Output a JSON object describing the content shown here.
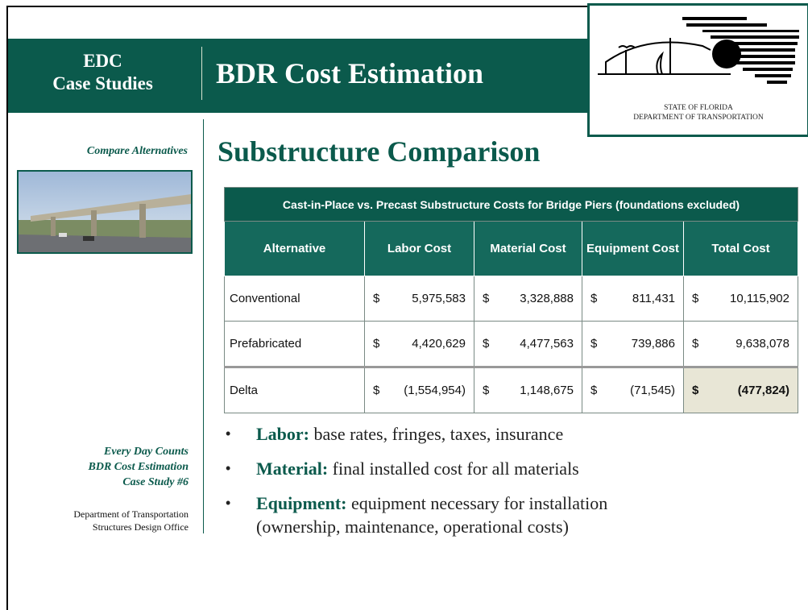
{
  "header": {
    "left_title": [
      "EDC",
      "Case Studies"
    ],
    "title": "BDR Cost Estimation",
    "logo": [
      "STATE OF FLORIDA",
      "DEPARTMENT OF TRANSPORTATION"
    ]
  },
  "sidebar": {
    "caption": "Compare Alternatives",
    "series": [
      "Every Day Counts",
      "BDR Cost Estimation",
      "Case Study #6"
    ],
    "office": [
      "Department of Transportation",
      "Structures Design Office"
    ]
  },
  "slide_title": "Substructure Comparison",
  "table": {
    "caption": "Cast-in-Place vs. Precast Substructure Costs for Bridge Piers (foundations excluded)",
    "columns": [
      "Alternative",
      "Labor Cost",
      "Material Cost",
      "Equipment Cost",
      "Total Cost"
    ],
    "rows": [
      {
        "label": "Conventional",
        "cells": [
          {
            "symbol": "$",
            "amount": "5,975,583"
          },
          {
            "symbol": "$",
            "amount": "3,328,888"
          },
          {
            "symbol": "$",
            "amount": "811,431"
          },
          {
            "symbol": "$",
            "amount": "10,115,902"
          }
        ]
      },
      {
        "label": "Prefabricated",
        "cells": [
          {
            "symbol": "$",
            "amount": "4,420,629"
          },
          {
            "symbol": "$",
            "amount": "4,477,563"
          },
          {
            "symbol": "$",
            "amount": "739,886"
          },
          {
            "symbol": "$",
            "amount": "9,638,078"
          }
        ]
      },
      {
        "label": "Delta",
        "cells": [
          {
            "symbol": "$",
            "amount": "(1,554,954)"
          },
          {
            "symbol": "$",
            "amount": "1,148,675"
          },
          {
            "symbol": "$",
            "amount": "(71,545)"
          },
          {
            "symbol": "$",
            "amount": "(477,824)"
          }
        ]
      }
    ]
  },
  "bullets": [
    {
      "term": "Labor:",
      "text": [
        "base rates, fringes, taxes, insurance"
      ]
    },
    {
      "term": "Material:",
      "text": [
        "final installed cost for all materials"
      ]
    },
    {
      "term": "Equipment:",
      "text": [
        "equipment necessary for installation",
        "(ownership, maintenance, operational costs)"
      ]
    }
  ]
}
